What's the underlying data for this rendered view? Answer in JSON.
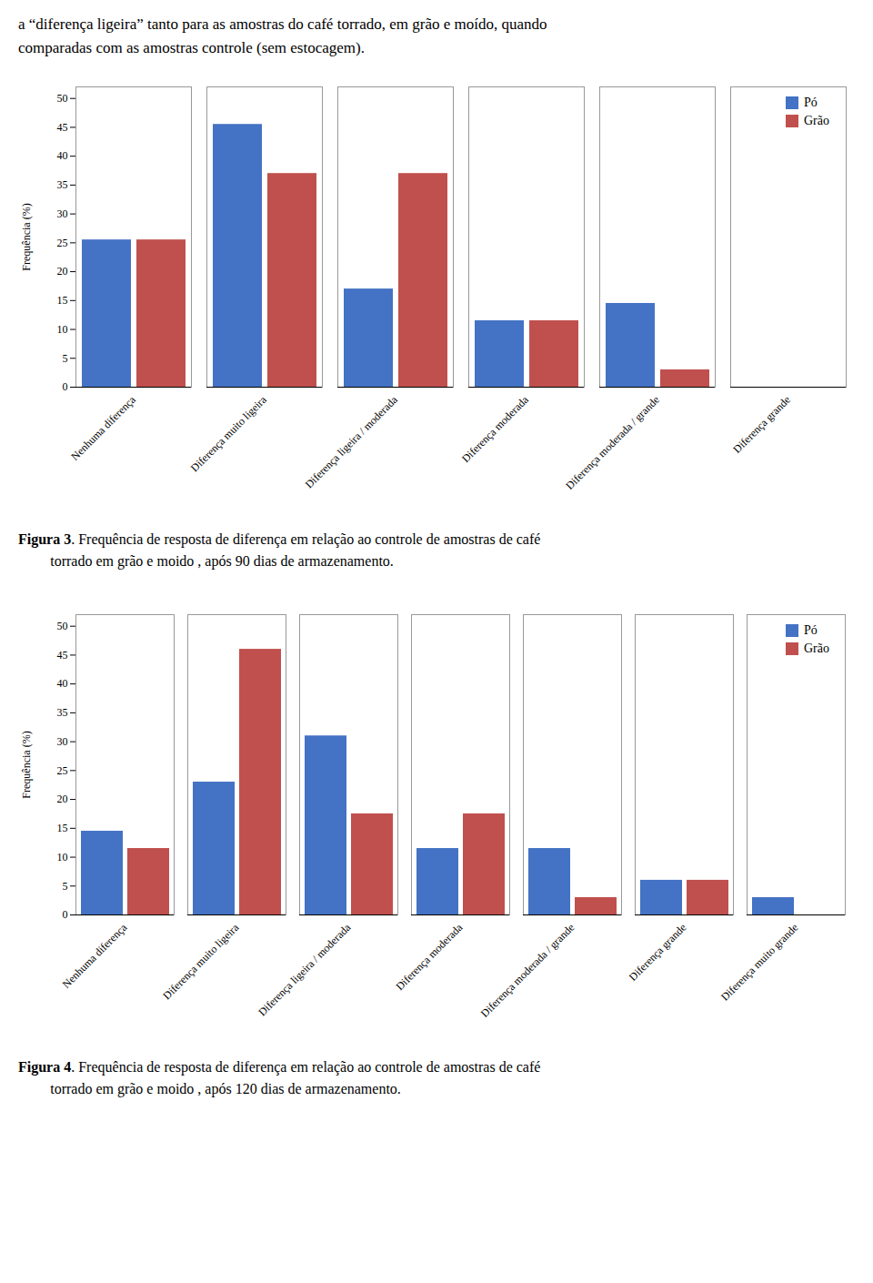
{
  "chart_data": [
    {
      "type": "bar",
      "annotations": [
        "a “diferença ligeira” tanto para as amostras do café torrado, em grão e moído, quando",
        "comparadas com as amostras controle (sem estocagem)."
      ],
      "title": [
        "Figura 3. Frequência de resposta de diferença em relação ao controle de amostras de café",
        "torrado em grão e moido , após 90 dias de armazenamento."
      ],
      "ylabel": "Frequência (%)",
      "categories": [
        "Nenhuma diferença",
        "Diferença muito ligeira",
        "Diferença ligeira / moderada",
        "Diferença moderada",
        "Diferença moderada / grande",
        "Diferença grande"
      ],
      "series": [
        {
          "name": "Pó",
          "color": "#4472C4",
          "values": [
            25.5,
            45.5,
            17,
            11.5,
            14.5,
            0
          ]
        },
        {
          "name": "Grão",
          "color": "#C0504D",
          "values": [
            25.5,
            37,
            37,
            11.5,
            3,
            0
          ]
        }
      ],
      "ylim": [
        0,
        52
      ],
      "yticks": [
        0,
        5,
        10,
        15,
        20,
        25,
        30,
        35,
        40,
        45,
        50
      ],
      "grid": false,
      "legend": "upper right"
    },
    {
      "type": "bar",
      "title": [
        "Figura 4. Frequência de resposta de diferença em relação ao controle de amostras de café",
        "torrado em grão e moido , após 120 dias de armazenamento."
      ],
      "ylabel": "Frequência (%)",
      "categories": [
        "Nenhuma diferença",
        "Diferença muito ligeira",
        "Diferença ligeira / moderada",
        "Diferença moderada",
        "Diferença moderada / grande",
        "Diferença grande",
        "Diferença muito grande"
      ],
      "series": [
        {
          "name": "Pó",
          "color": "#4472C4",
          "values": [
            14.5,
            23,
            31,
            11.5,
            11.5,
            6,
            3
          ]
        },
        {
          "name": "Grão",
          "color": "#C0504D",
          "values": [
            11.5,
            46,
            17.5,
            17.5,
            3,
            6,
            0
          ]
        }
      ],
      "ylim": [
        0,
        52
      ],
      "yticks": [
        0,
        5,
        10,
        15,
        20,
        25,
        30,
        35,
        40,
        45,
        50
      ],
      "grid": false,
      "legend": "upper right"
    }
  ]
}
